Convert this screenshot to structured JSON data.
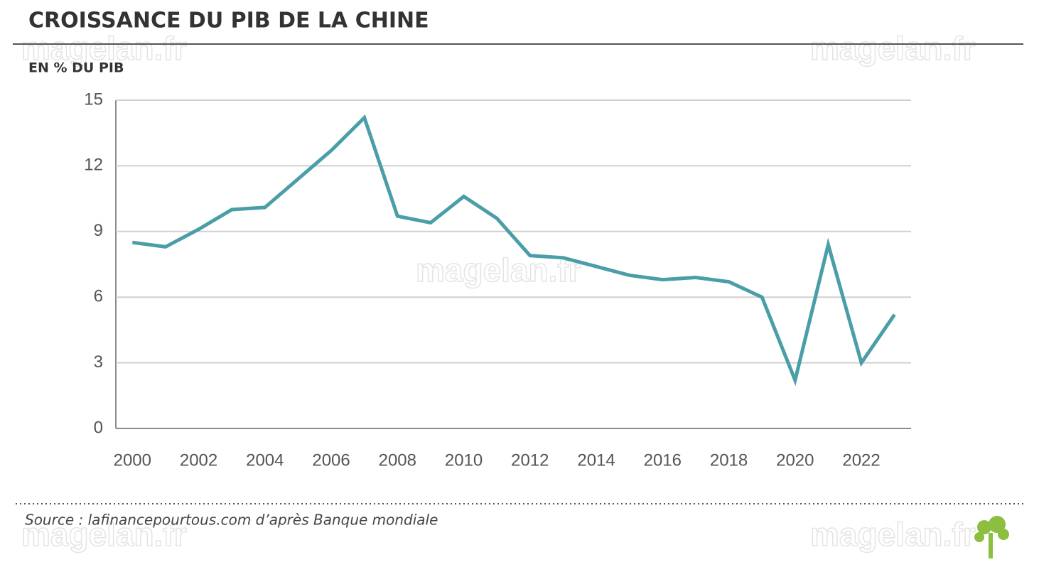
{
  "chart_data": {
    "type": "line",
    "title": "CROISSANCE DU PIB DE LA CHINE",
    "subtitle": "EN % DU PIB",
    "source": "Source : lafinancepourtous.com d’après Banque mondiale",
    "watermark": "magelan.fr",
    "x": [
      2000,
      2001,
      2002,
      2003,
      2004,
      2005,
      2006,
      2007,
      2008,
      2009,
      2010,
      2011,
      2012,
      2013,
      2014,
      2015,
      2016,
      2017,
      2018,
      2019,
      2020,
      2021,
      2022,
      2023
    ],
    "values": [
      8.5,
      8.3,
      9.1,
      10.0,
      10.1,
      11.4,
      12.7,
      14.2,
      9.7,
      9.4,
      10.6,
      9.6,
      7.9,
      7.8,
      7.4,
      7.0,
      6.8,
      6.9,
      6.7,
      6.0,
      2.2,
      8.4,
      3.0,
      5.2
    ],
    "color": "#4a9ea8",
    "xlim": [
      1999.5,
      2023.5
    ],
    "xticks": [
      2000,
      2002,
      2004,
      2006,
      2008,
      2010,
      2012,
      2014,
      2016,
      2018,
      2020,
      2022
    ],
    "ylim": [
      0,
      15
    ],
    "yticks": [
      0,
      3,
      6,
      9,
      12,
      15
    ],
    "grid": true
  }
}
